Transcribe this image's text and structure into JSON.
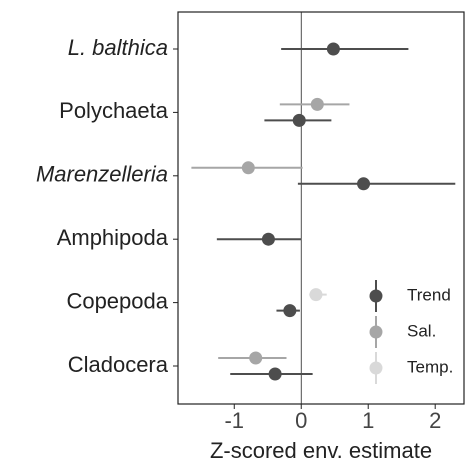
{
  "chart_data": {
    "type": "dot-whisker",
    "x_label": "Z-scored env. estimate",
    "categories": [
      "L. balthica",
      "Polychaeta",
      "Marenzelleria",
      "Amphipoda",
      "Copepoda",
      "Cladocera"
    ],
    "italic_categories": [
      0,
      2
    ],
    "xlim": [
      -1.84,
      2.43
    ],
    "xticks": [
      -1,
      0,
      1,
      2
    ],
    "reference_line": 0,
    "legend": "bottom-right",
    "series": [
      {
        "name": "Trend",
        "color": "#4d4d4d",
        "values": [
          0.48,
          -0.03,
          0.93,
          -0.49,
          -0.17,
          -0.39
        ],
        "lower": [
          -0.3,
          -0.55,
          -0.05,
          -1.26,
          -0.37,
          -1.06
        ],
        "upper": [
          1.6,
          0.45,
          2.3,
          0.0,
          -0.02,
          0.17
        ]
      },
      {
        "name": "Sal.",
        "color": "#a6a6a6",
        "values": [
          null,
          0.24,
          -0.79,
          null,
          null,
          -0.68
        ],
        "lower": [
          null,
          -0.32,
          -1.64,
          null,
          null,
          -1.24
        ],
        "upper": [
          null,
          0.72,
          0.02,
          null,
          null,
          -0.22
        ]
      },
      {
        "name": "Temp.",
        "color": "#d9d9d9",
        "values": [
          null,
          null,
          null,
          null,
          0.22,
          null
        ],
        "lower": [
          null,
          null,
          null,
          null,
          0.12,
          null
        ],
        "upper": [
          null,
          null,
          null,
          null,
          0.38,
          null
        ]
      }
    ]
  }
}
